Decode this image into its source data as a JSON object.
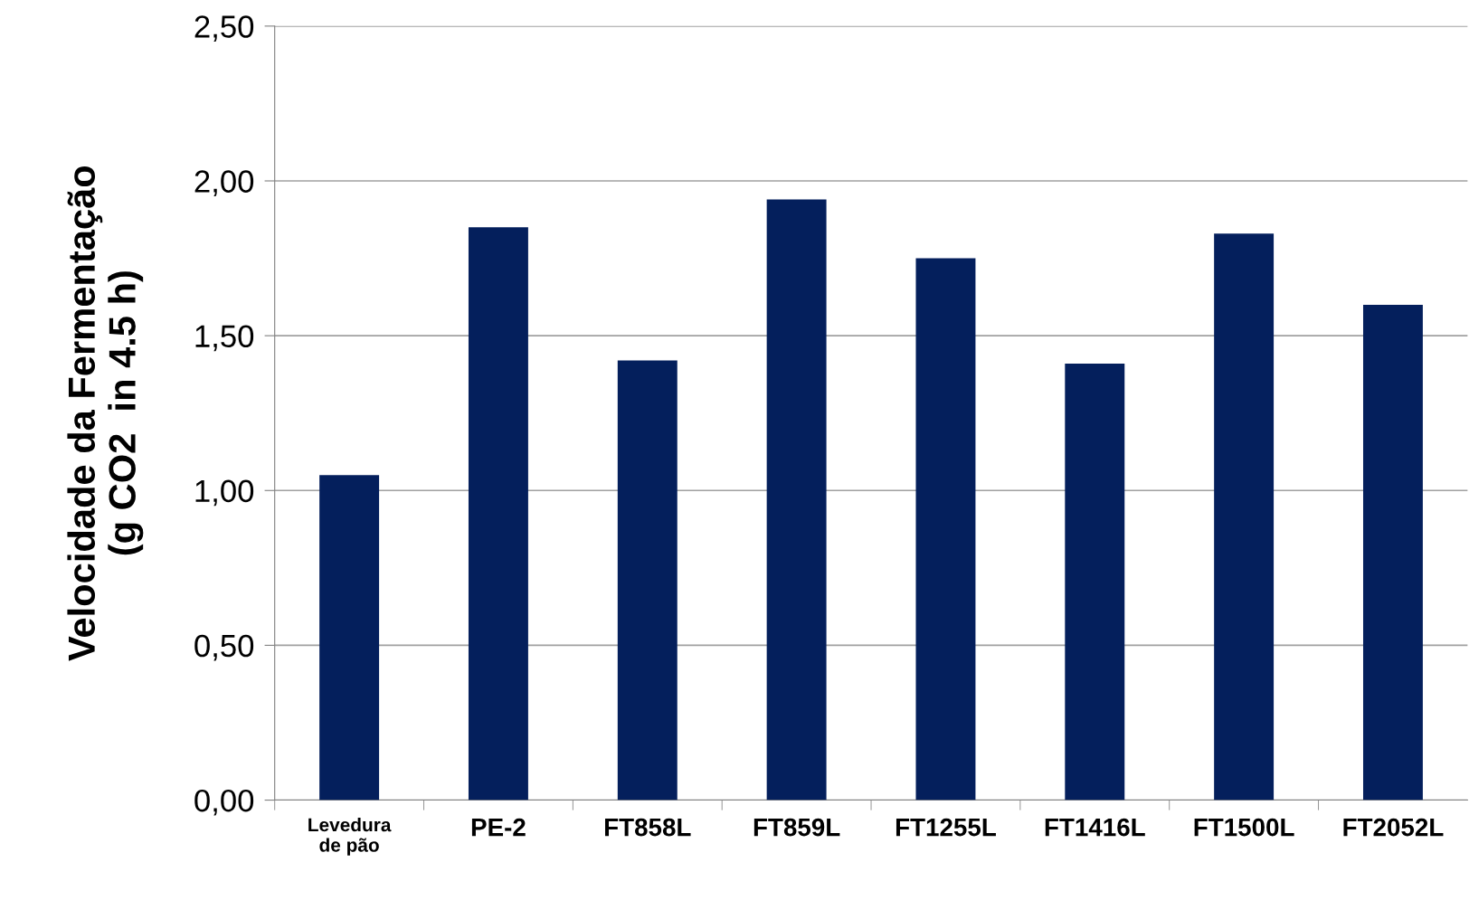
{
  "chart_data": {
    "type": "bar",
    "ylabel": "Velocidade da Fermentação\n(g CO2  in 4.5 h)",
    "categories": [
      "Levedura\nde pão",
      "PE-2",
      "FT858L",
      "FT859L",
      "FT1255L",
      "FT1416L",
      "FT1500L",
      "FT2052L"
    ],
    "values": [
      1.05,
      1.85,
      1.42,
      1.94,
      1.75,
      1.41,
      1.83,
      1.6
    ],
    "color": "#041f5c",
    "ylim": [
      0,
      2.5
    ],
    "yticks": [
      {
        "value": 0,
        "label": "0,00"
      },
      {
        "value": 0.5,
        "label": "0,50"
      },
      {
        "value": 1.0,
        "label": "1,00"
      },
      {
        "value": 1.5,
        "label": "1,50"
      },
      {
        "value": 2.0,
        "label": "2,00"
      },
      {
        "value": 2.5,
        "label": "2,50"
      }
    ],
    "grid": "y"
  }
}
